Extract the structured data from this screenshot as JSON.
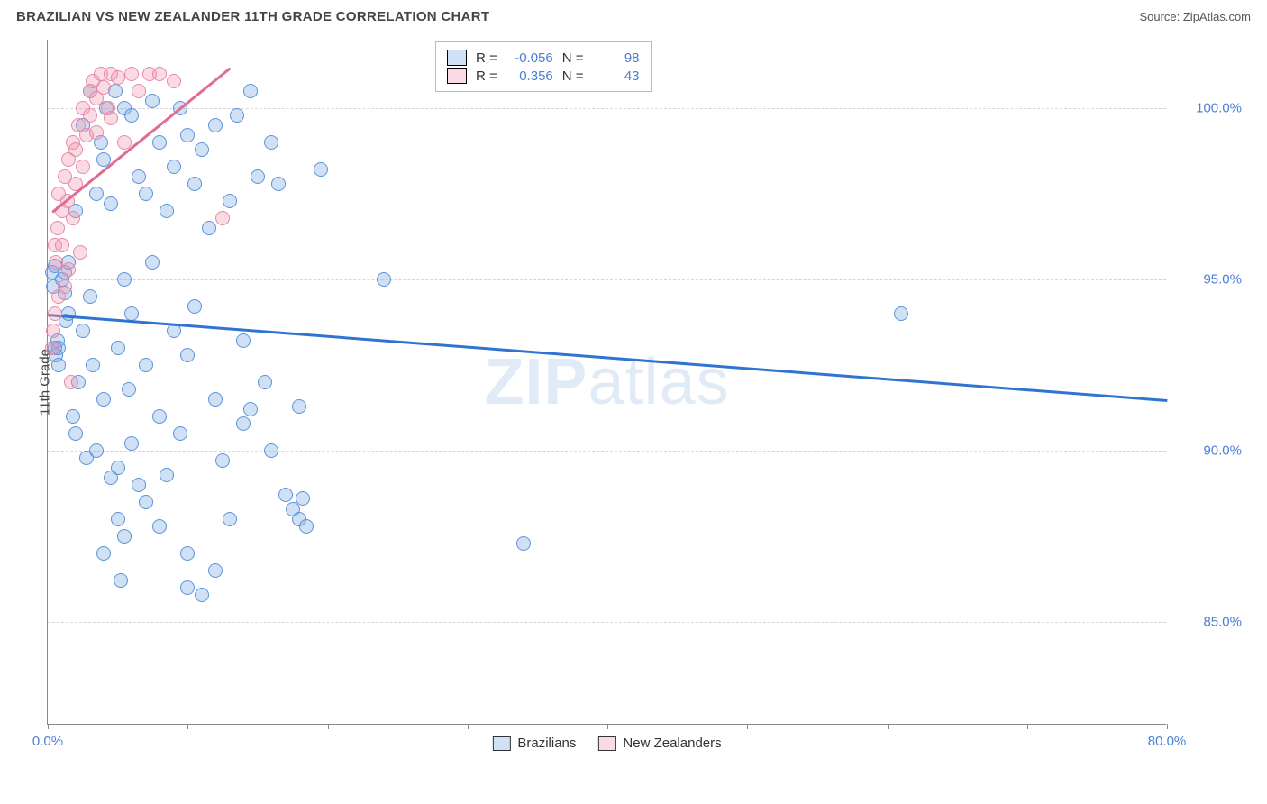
{
  "header": {
    "title": "BRAZILIAN VS NEW ZEALANDER 11TH GRADE CORRELATION CHART",
    "source": "Source: ZipAtlas.com"
  },
  "chart": {
    "type": "scatter",
    "ylabel": "11th Grade",
    "watermark_bold": "ZIP",
    "watermark_light": "atlas",
    "xlim": [
      0,
      80
    ],
    "ylim": [
      82,
      102
    ],
    "x_ticks": [
      0,
      10,
      20,
      30,
      40,
      50,
      60,
      70,
      80
    ],
    "x_tick_labels": {
      "0": "0.0%",
      "80": "80.0%"
    },
    "y_gridlines": [
      85,
      90,
      95,
      100
    ],
    "y_tick_labels": {
      "85": "85.0%",
      "90": "90.0%",
      "95": "95.0%",
      "100": "100.0%"
    },
    "grid_color": "#d6d6d6",
    "axis_color": "#888888",
    "background_color": "#ffffff",
    "series": [
      {
        "name": "Brazilians",
        "color_fill": "rgba(120,165,225,0.35)",
        "color_stroke": "#5d94db",
        "marker_size": 16,
        "R": "-0.056",
        "N": "98",
        "trend": {
          "x1": 0,
          "y1": 94.0,
          "x2": 80,
          "y2": 91.5,
          "color": "#2f74d0",
          "width": 2.5
        },
        "points": [
          [
            0.3,
            95.2
          ],
          [
            0.4,
            94.8
          ],
          [
            0.5,
            95.4
          ],
          [
            0.5,
            93.0
          ],
          [
            0.6,
            92.8
          ],
          [
            0.7,
            93.2
          ],
          [
            0.8,
            93.0
          ],
          [
            0.8,
            92.5
          ],
          [
            1.0,
            95.0
          ],
          [
            1.2,
            94.6
          ],
          [
            1.2,
            95.2
          ],
          [
            1.3,
            93.8
          ],
          [
            1.5,
            94.0
          ],
          [
            1.5,
            95.5
          ],
          [
            1.8,
            91.0
          ],
          [
            2.0,
            97.0
          ],
          [
            2.0,
            90.5
          ],
          [
            2.2,
            92.0
          ],
          [
            2.5,
            99.5
          ],
          [
            2.5,
            93.5
          ],
          [
            2.8,
            89.8
          ],
          [
            3.0,
            100.5
          ],
          [
            3.0,
            94.5
          ],
          [
            3.2,
            92.5
          ],
          [
            3.5,
            97.5
          ],
          [
            3.5,
            90.0
          ],
          [
            3.8,
            99.0
          ],
          [
            4.0,
            98.5
          ],
          [
            4.0,
            91.5
          ],
          [
            4.0,
            87.0
          ],
          [
            4.2,
            100.0
          ],
          [
            4.5,
            97.2
          ],
          [
            4.5,
            89.2
          ],
          [
            4.8,
            100.5
          ],
          [
            5.0,
            89.5
          ],
          [
            5.0,
            93.0
          ],
          [
            5.0,
            88.0
          ],
          [
            5.2,
            86.2
          ],
          [
            5.5,
            100.0
          ],
          [
            5.5,
            95.0
          ],
          [
            5.5,
            87.5
          ],
          [
            5.8,
            91.8
          ],
          [
            6.0,
            99.8
          ],
          [
            6.0,
            94.0
          ],
          [
            6.0,
            90.2
          ],
          [
            6.5,
            98.0
          ],
          [
            6.5,
            89.0
          ],
          [
            7.0,
            97.5
          ],
          [
            7.0,
            92.5
          ],
          [
            7.0,
            88.5
          ],
          [
            7.5,
            95.5
          ],
          [
            7.5,
            100.2
          ],
          [
            8.0,
            99.0
          ],
          [
            8.0,
            91.0
          ],
          [
            8.0,
            87.8
          ],
          [
            8.5,
            97.0
          ],
          [
            8.5,
            89.3
          ],
          [
            9.0,
            98.3
          ],
          [
            9.0,
            93.5
          ],
          [
            9.5,
            100.0
          ],
          [
            9.5,
            90.5
          ],
          [
            10.0,
            99.2
          ],
          [
            10.0,
            92.8
          ],
          [
            10.0,
            87.0
          ],
          [
            10.0,
            86.0
          ],
          [
            10.5,
            97.8
          ],
          [
            10.5,
            94.2
          ],
          [
            11.0,
            98.8
          ],
          [
            11.0,
            85.8
          ],
          [
            11.5,
            96.5
          ],
          [
            12.0,
            99.5
          ],
          [
            12.0,
            91.5
          ],
          [
            12.0,
            86.5
          ],
          [
            12.5,
            89.7
          ],
          [
            13.0,
            97.3
          ],
          [
            13.0,
            88.0
          ],
          [
            13.5,
            99.8
          ],
          [
            14.0,
            93.2
          ],
          [
            14.0,
            90.8
          ],
          [
            14.5,
            100.5
          ],
          [
            14.5,
            91.2
          ],
          [
            15.0,
            98.0
          ],
          [
            15.5,
            92.0
          ],
          [
            16.0,
            99.0
          ],
          [
            16.0,
            90.0
          ],
          [
            16.5,
            97.8
          ],
          [
            17.0,
            88.7
          ],
          [
            17.5,
            88.3
          ],
          [
            18.0,
            91.3
          ],
          [
            18.0,
            88.0
          ],
          [
            18.2,
            88.6
          ],
          [
            18.5,
            87.8
          ],
          [
            19.5,
            98.2
          ],
          [
            24.0,
            95.0
          ],
          [
            34.0,
            87.3
          ],
          [
            61.0,
            94.0
          ]
        ]
      },
      {
        "name": "New Zealanders",
        "color_fill": "rgba(240,150,175,0.35)",
        "color_stroke": "#e88aa8",
        "marker_size": 16,
        "R": "0.356",
        "N": "43",
        "trend": {
          "x1": 0.3,
          "y1": 97.0,
          "x2": 13.0,
          "y2": 101.2,
          "color": "#e26b92",
          "width": 2.5
        },
        "points": [
          [
            0.3,
            93.0
          ],
          [
            0.4,
            93.5
          ],
          [
            0.5,
            94.0
          ],
          [
            0.5,
            96.0
          ],
          [
            0.6,
            95.5
          ],
          [
            0.7,
            96.5
          ],
          [
            0.8,
            94.5
          ],
          [
            0.8,
            97.5
          ],
          [
            1.0,
            96.0
          ],
          [
            1.0,
            97.0
          ],
          [
            1.2,
            94.8
          ],
          [
            1.2,
            98.0
          ],
          [
            1.4,
            97.3
          ],
          [
            1.5,
            95.3
          ],
          [
            1.5,
            98.5
          ],
          [
            1.7,
            92.0
          ],
          [
            1.8,
            96.8
          ],
          [
            1.8,
            99.0
          ],
          [
            2.0,
            97.8
          ],
          [
            2.0,
            98.8
          ],
          [
            2.2,
            99.5
          ],
          [
            2.3,
            95.8
          ],
          [
            2.5,
            100.0
          ],
          [
            2.5,
            98.3
          ],
          [
            2.8,
            99.2
          ],
          [
            3.0,
            100.5
          ],
          [
            3.0,
            99.8
          ],
          [
            3.2,
            100.8
          ],
          [
            3.5,
            100.3
          ],
          [
            3.5,
            99.3
          ],
          [
            3.8,
            101.0
          ],
          [
            4.0,
            100.6
          ],
          [
            4.3,
            100.0
          ],
          [
            4.5,
            101.0
          ],
          [
            4.5,
            99.7
          ],
          [
            5.0,
            100.9
          ],
          [
            5.5,
            99.0
          ],
          [
            6.0,
            101.0
          ],
          [
            6.5,
            100.5
          ],
          [
            7.3,
            101.0
          ],
          [
            8.0,
            101.0
          ],
          [
            9.0,
            100.8
          ],
          [
            12.5,
            96.8
          ]
        ]
      }
    ],
    "legend_top": {
      "R_label": "R =",
      "N_label": "N ="
    },
    "legend_bottom": [
      {
        "swatch": "blue",
        "label": "Brazilians"
      },
      {
        "swatch": "pink",
        "label": "New Zealanders"
      }
    ]
  }
}
